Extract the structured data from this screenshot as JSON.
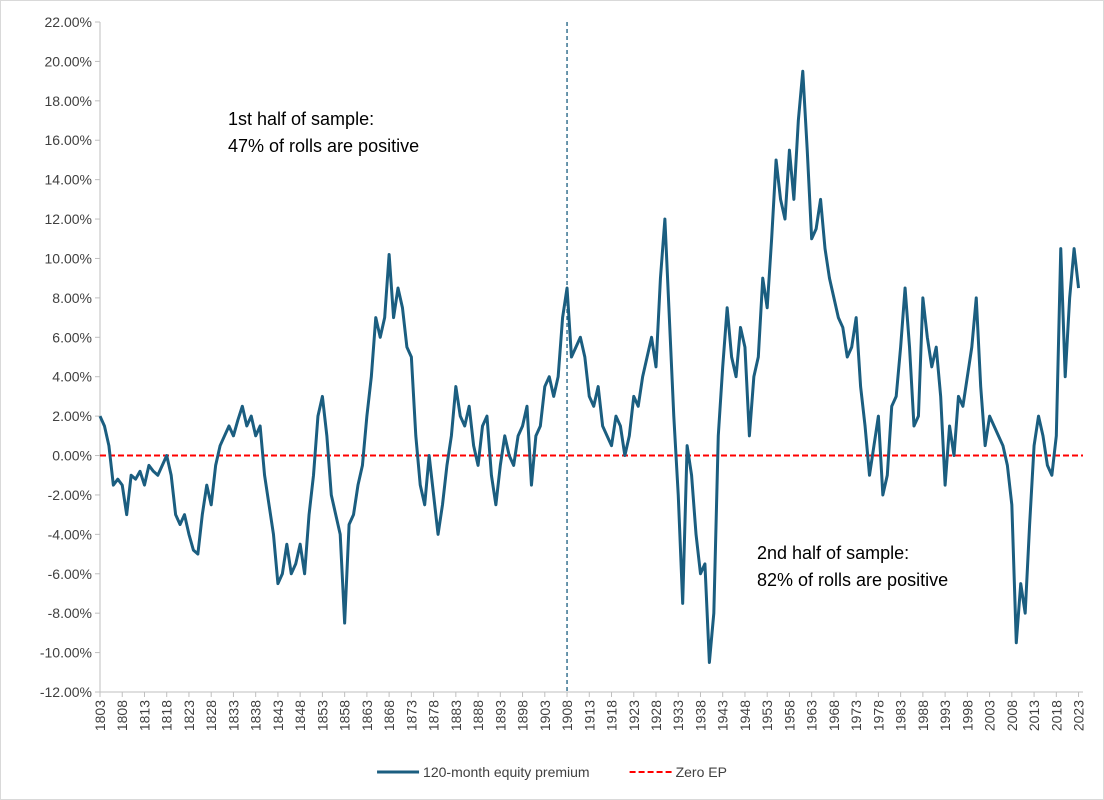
{
  "chart_data": {
    "type": "line",
    "annotations": [
      {
        "lines": [
          "1st half of sample:",
          "47% of rolls are positive"
        ]
      },
      {
        "lines": [
          "2nd half of sample:",
          "82% of rolls are positive"
        ]
      }
    ],
    "x": [
      1803,
      1804,
      1805,
      1806,
      1807,
      1808,
      1809,
      1810,
      1811,
      1812,
      1813,
      1814,
      1815,
      1816,
      1817,
      1818,
      1819,
      1820,
      1821,
      1822,
      1823,
      1824,
      1825,
      1826,
      1827,
      1828,
      1829,
      1830,
      1831,
      1832,
      1833,
      1834,
      1835,
      1836,
      1837,
      1838,
      1839,
      1840,
      1841,
      1842,
      1843,
      1844,
      1845,
      1846,
      1847,
      1848,
      1849,
      1850,
      1851,
      1852,
      1853,
      1854,
      1855,
      1856,
      1857,
      1858,
      1859,
      1860,
      1861,
      1862,
      1863,
      1864,
      1865,
      1866,
      1867,
      1868,
      1869,
      1870,
      1871,
      1872,
      1873,
      1874,
      1875,
      1876,
      1877,
      1878,
      1879,
      1880,
      1881,
      1882,
      1883,
      1884,
      1885,
      1886,
      1887,
      1888,
      1889,
      1890,
      1891,
      1892,
      1893,
      1894,
      1895,
      1896,
      1897,
      1898,
      1899,
      1900,
      1901,
      1902,
      1903,
      1904,
      1905,
      1906,
      1907,
      1908,
      1909,
      1910,
      1911,
      1912,
      1913,
      1914,
      1915,
      1916,
      1917,
      1918,
      1919,
      1920,
      1921,
      1922,
      1923,
      1924,
      1925,
      1926,
      1927,
      1928,
      1929,
      1930,
      1931,
      1932,
      1933,
      1934,
      1935,
      1936,
      1937,
      1938,
      1939,
      1940,
      1941,
      1942,
      1943,
      1944,
      1945,
      1946,
      1947,
      1948,
      1949,
      1950,
      1951,
      1952,
      1953,
      1954,
      1955,
      1956,
      1957,
      1958,
      1959,
      1960,
      1961,
      1962,
      1963,
      1964,
      1965,
      1966,
      1967,
      1968,
      1969,
      1970,
      1971,
      1972,
      1973,
      1974,
      1975,
      1976,
      1977,
      1978,
      1979,
      1980,
      1981,
      1982,
      1983,
      1984,
      1985,
      1986,
      1987,
      1988,
      1989,
      1990,
      1991,
      1992,
      1993,
      1994,
      1995,
      1996,
      1997,
      1998,
      1999,
      2000,
      2001,
      2002,
      2003,
      2004,
      2005,
      2006,
      2007,
      2008,
      2009,
      2010,
      2011,
      2012,
      2013,
      2014,
      2015,
      2016,
      2017,
      2018,
      2019,
      2020,
      2021,
      2022,
      2023
    ],
    "series": [
      {
        "name": "120-month equity premium",
        "color": "#1b5e80",
        "values": [
          2.0,
          1.5,
          0.5,
          -1.5,
          -1.2,
          -1.5,
          -3.0,
          -1.0,
          -1.2,
          -0.8,
          -1.5,
          -0.5,
          -0.8,
          -1.0,
          -0.5,
          0.0,
          -1.0,
          -3.0,
          -3.5,
          -3.0,
          -4.0,
          -4.8,
          -5.0,
          -3.0,
          -1.5,
          -2.5,
          -0.5,
          0.5,
          1.0,
          1.5,
          1.0,
          1.8,
          2.5,
          1.5,
          2.0,
          1.0,
          1.5,
          -1.0,
          -2.5,
          -4.0,
          -6.5,
          -6.0,
          -4.5,
          -6.0,
          -5.5,
          -4.5,
          -6.0,
          -3.0,
          -1.0,
          2.0,
          3.0,
          1.0,
          -2.0,
          -3.0,
          -4.0,
          -8.5,
          -3.5,
          -3.0,
          -1.5,
          -0.5,
          2.0,
          4.0,
          7.0,
          6.0,
          7.0,
          10.2,
          7.0,
          8.5,
          7.5,
          5.5,
          5.0,
          1.0,
          -1.5,
          -2.5,
          0.0,
          -2.0,
          -4.0,
          -2.5,
          -0.5,
          1.0,
          3.5,
          2.0,
          1.5,
          2.5,
          0.5,
          -0.5,
          1.5,
          2.0,
          -1.0,
          -2.5,
          -0.5,
          1.0,
          0.0,
          -0.5,
          1.0,
          1.5,
          2.5,
          -1.5,
          1.0,
          1.5,
          3.5,
          4.0,
          3.0,
          4.0,
          7.0,
          8.5,
          5.0,
          5.5,
          6.0,
          5.0,
          3.0,
          2.5,
          3.5,
          1.5,
          1.0,
          0.5,
          2.0,
          1.5,
          0.0,
          1.0,
          3.0,
          2.5,
          4.0,
          5.0,
          6.0,
          4.5,
          9.0,
          12.0,
          7.0,
          2.0,
          -2.0,
          -7.5,
          0.5,
          -1.0,
          -4.0,
          -6.0,
          -5.5,
          -10.5,
          -8.0,
          1.0,
          4.5,
          7.5,
          5.0,
          4.0,
          6.5,
          5.5,
          1.0,
          4.0,
          5.0,
          9.0,
          7.5,
          11.0,
          15.0,
          13.0,
          12.0,
          15.5,
          13.0,
          17.0,
          19.5,
          15.5,
          11.0,
          11.5,
          13.0,
          10.5,
          9.0,
          8.0,
          7.0,
          6.5,
          5.0,
          5.5,
          7.0,
          3.5,
          1.5,
          -1.0,
          0.5,
          2.0,
          -2.0,
          -1.0,
          2.5,
          3.0,
          5.5,
          8.5,
          5.5,
          1.5,
          2.0,
          8.0,
          6.0,
          4.5,
          5.5,
          3.0,
          -1.5,
          1.5,
          0.0,
          3.0,
          2.5,
          4.0,
          5.5,
          8.0,
          3.5,
          0.5,
          2.0,
          1.5,
          1.0,
          0.5,
          -0.5,
          -2.5,
          -9.5,
          -6.5,
          -8.0,
          -3.5,
          0.5,
          2.0,
          1.0,
          -0.5,
          -1.0,
          1.0,
          10.5,
          4.0,
          8.0,
          10.5,
          8.5
        ]
      }
    ],
    "reference_lines": [
      {
        "name": "Zero EP",
        "value": 0,
        "color": "#ff0000"
      }
    ],
    "vline": {
      "x": 1908,
      "color": "#1b5e80"
    },
    "xlim": [
      1803,
      2024
    ],
    "xticks": [
      1803,
      1808,
      1813,
      1818,
      1823,
      1828,
      1833,
      1838,
      1843,
      1848,
      1853,
      1858,
      1863,
      1868,
      1873,
      1878,
      1883,
      1888,
      1893,
      1898,
      1903,
      1908,
      1913,
      1918,
      1923,
      1928,
      1933,
      1938,
      1943,
      1948,
      1953,
      1958,
      1963,
      1968,
      1973,
      1978,
      1983,
      1988,
      1993,
      1998,
      2003,
      2008,
      2013,
      2018,
      2023
    ],
    "ylim": [
      -12,
      22
    ],
    "yticks": [
      {
        "value": -12,
        "label": "-12.00%"
      },
      {
        "value": -10,
        "label": "-10.00%"
      },
      {
        "value": -8,
        "label": "-8.00%"
      },
      {
        "value": -6,
        "label": "-6.00%"
      },
      {
        "value": -4,
        "label": "-4.00%"
      },
      {
        "value": -2,
        "label": "-2.00%"
      },
      {
        "value": 0,
        "label": "0.00%"
      },
      {
        "value": 2,
        "label": "2.00%"
      },
      {
        "value": 4,
        "label": "4.00%"
      },
      {
        "value": 6,
        "label": "6.00%"
      },
      {
        "value": 8,
        "label": "8.00%"
      },
      {
        "value": 10,
        "label": "10.00%"
      },
      {
        "value": 12,
        "label": "12.00%"
      },
      {
        "value": 14,
        "label": "14.00%"
      },
      {
        "value": 16,
        "label": "16.00%"
      },
      {
        "value": 18,
        "label": "18.00%"
      },
      {
        "value": 20,
        "label": "20.00%"
      },
      {
        "value": 22,
        "label": "22.00%"
      }
    ],
    "legend": "bottom"
  }
}
